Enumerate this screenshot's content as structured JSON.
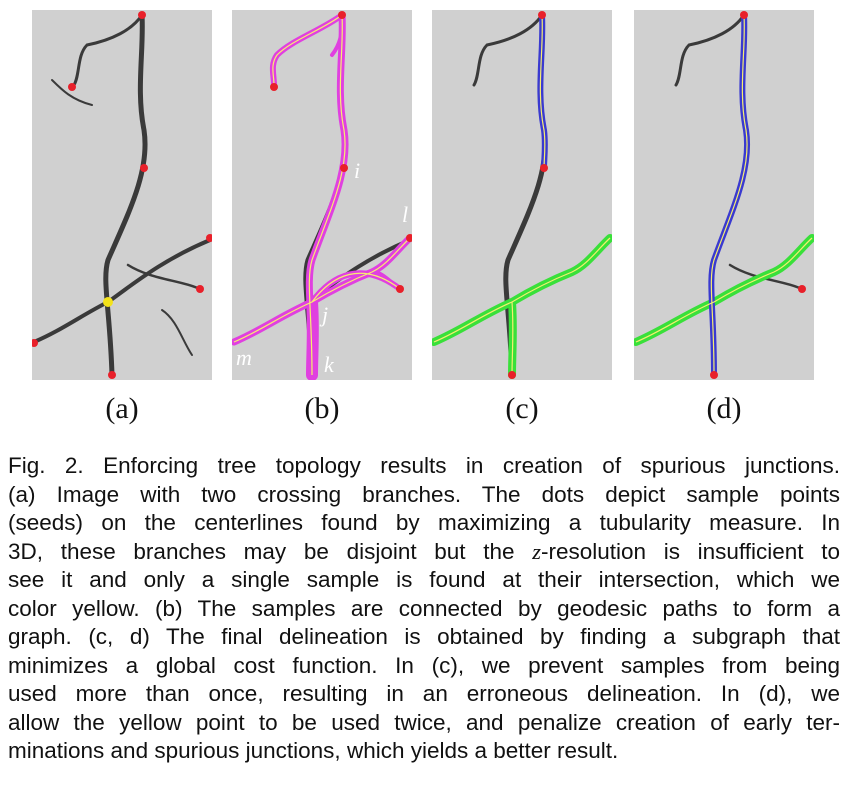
{
  "figure": {
    "panels": [
      {
        "id": "a",
        "label": "(a)"
      },
      {
        "id": "b",
        "label": "(b)"
      },
      {
        "id": "c",
        "label": "(c)"
      },
      {
        "id": "d",
        "label": "(d)"
      }
    ],
    "node_labels": {
      "i": "i",
      "j": "j",
      "k": "k",
      "l": "l",
      "m": "m"
    },
    "colors": {
      "background": "#d0d0d0",
      "vessel": "#3a3a3a",
      "seed": "#e8202a",
      "junction": "#f3e21a",
      "graph": "#e040e0",
      "branch_vertical": "#3a3ad0",
      "branch_crossing": "#39e03a",
      "centerline": "#f6ee70"
    }
  },
  "caption": {
    "line1": "Fig. 2. Enforcing tree topology results in creation of spurious junctions.",
    "line2": "(a) Image with two crossing branches. The dots depict sample points",
    "line3": "(seeds) on the centerlines found by maximizing a tubularity measure. In",
    "line4a": "3D, these branches may be disjoint but the ",
    "line4z": "z",
    "line4b": "-resolution is insufficient to",
    "line5": "see it and only a single sample is found at their intersection, which we",
    "line6": "color yellow. (b) The samples are connected by geodesic paths to form a",
    "line7": "graph. (c, d) The final delineation is obtained by finding a subgraph that",
    "line8": "minimizes a global cost function. In (c), we prevent samples from being",
    "line9": "used more than once, resulting in an erroneous delineation. In (d), we",
    "line10": "allow the yellow point to be used twice, and penalize creation of early ter-",
    "line11": "minations and spurious junctions, which yields a better result."
  }
}
